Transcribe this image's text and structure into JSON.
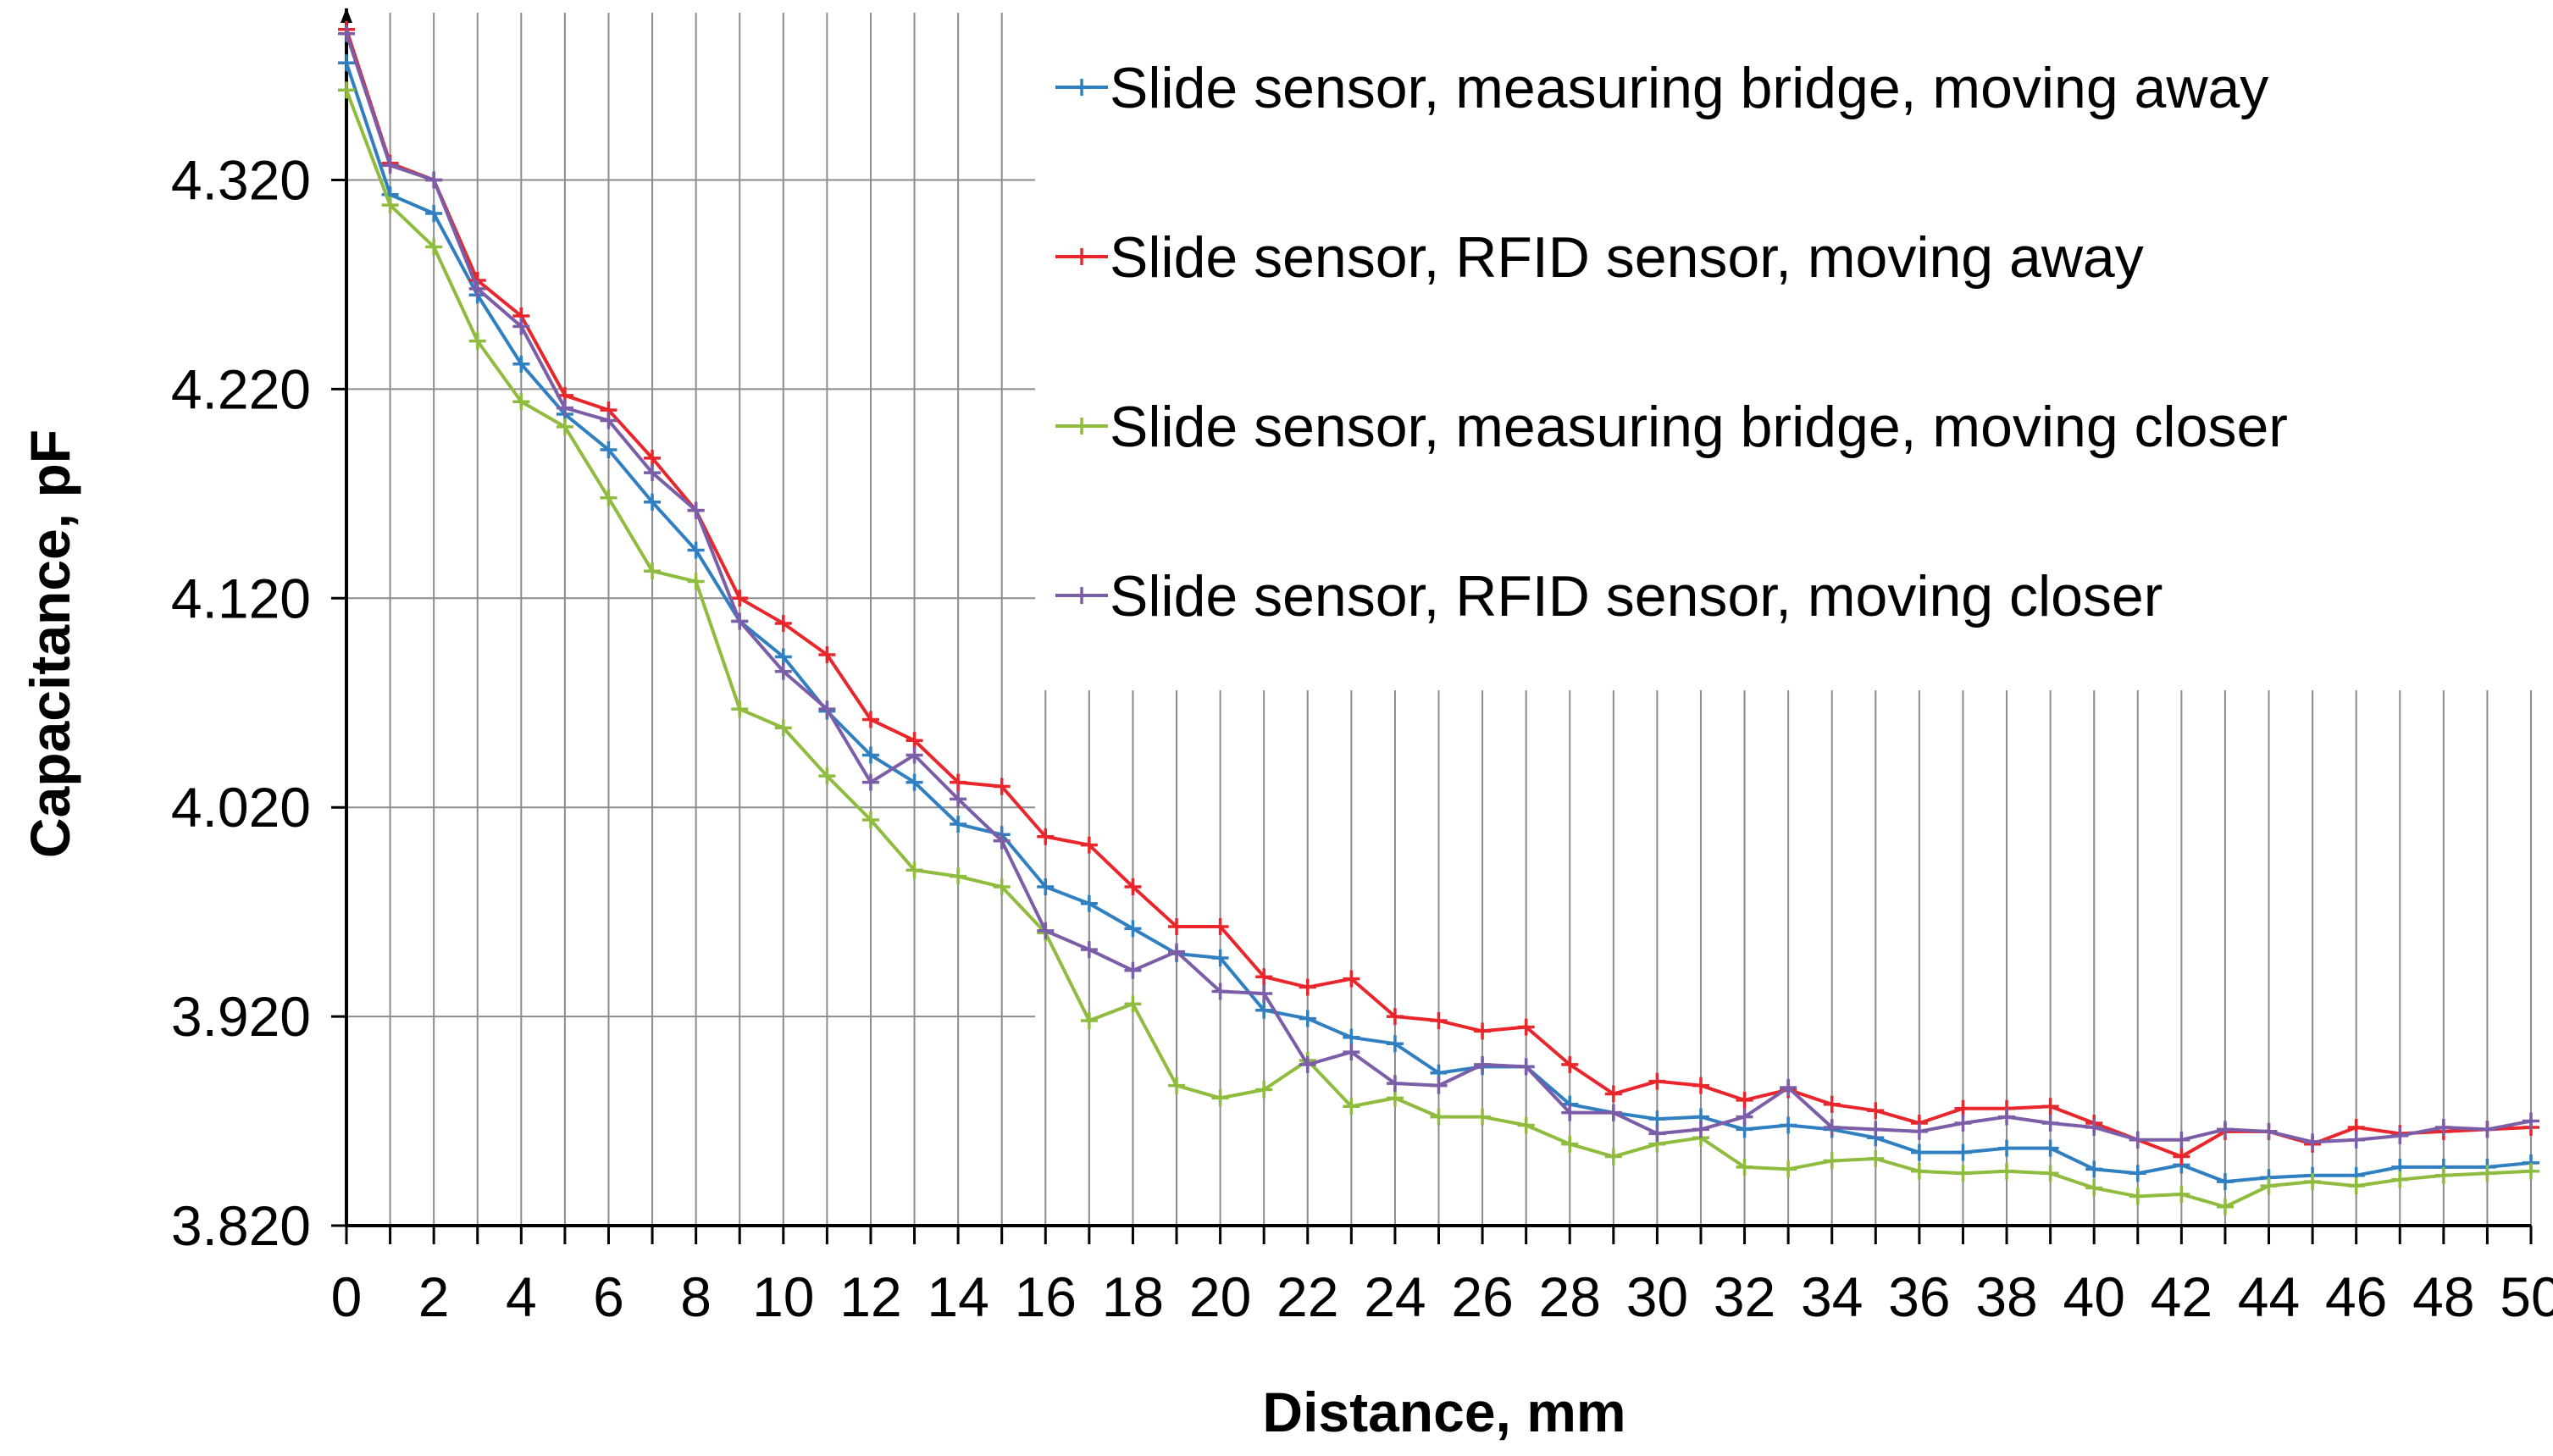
{
  "chart_data": {
    "type": "line",
    "title": "",
    "xlabel": "Distance, mm",
    "ylabel": "Capacitance, pF",
    "xlim": [
      0,
      50
    ],
    "ylim": [
      3.82,
      4.4
    ],
    "x_ticks": [
      0,
      2,
      4,
      6,
      8,
      10,
      12,
      14,
      16,
      18,
      20,
      22,
      24,
      26,
      28,
      30,
      32,
      34,
      36,
      38,
      40,
      42,
      44,
      46,
      48,
      50
    ],
    "y_ticks": [
      "3.820",
      "3.920",
      "4.020",
      "4.120",
      "4.220",
      "4.320"
    ],
    "y_tick_values": [
      3.82,
      3.92,
      4.02,
      4.12,
      4.22,
      4.32
    ],
    "grid": true,
    "legend_position": "top-right",
    "x": [
      0,
      1,
      2,
      3,
      4,
      5,
      6,
      7,
      8,
      9,
      10,
      11,
      12,
      13,
      14,
      15,
      16,
      17,
      18,
      19,
      20,
      21,
      22,
      23,
      24,
      25,
      26,
      27,
      28,
      29,
      30,
      31,
      32,
      33,
      34,
      35,
      36,
      37,
      38,
      39,
      40,
      41,
      42,
      43,
      44,
      45,
      46,
      47,
      48,
      49,
      50
    ],
    "series": [
      {
        "name": "Slide sensor, measuring bridge, moving away",
        "color": "#2f7fc1",
        "values": [
          4.376,
          4.313,
          4.304,
          4.265,
          4.232,
          4.208,
          4.191,
          4.166,
          4.143,
          4.109,
          4.092,
          4.066,
          4.045,
          4.032,
          4.012,
          4.007,
          3.982,
          3.974,
          3.962,
          3.95,
          3.948,
          3.923,
          3.919,
          3.91,
          3.907,
          3.893,
          3.896,
          3.896,
          3.878,
          3.874,
          3.871,
          3.872,
          3.866,
          3.868,
          3.866,
          3.862,
          3.855,
          3.855,
          3.857,
          3.857,
          3.847,
          3.845,
          3.849,
          3.841,
          3.843,
          3.844,
          3.844,
          3.848,
          3.848,
          3.848,
          3.85
        ]
      },
      {
        "name": "Slide sensor, RFID sensor, moving away",
        "color": "#e8262c",
        "values": [
          4.392,
          4.328,
          4.32,
          4.272,
          4.255,
          4.217,
          4.21,
          4.187,
          4.162,
          4.12,
          4.108,
          4.093,
          4.062,
          4.052,
          4.032,
          4.03,
          4.006,
          4.002,
          3.982,
          3.963,
          3.963,
          3.939,
          3.934,
          3.938,
          3.92,
          3.918,
          3.913,
          3.915,
          3.897,
          3.883,
          3.889,
          3.887,
          3.88,
          3.885,
          3.878,
          3.875,
          3.869,
          3.876,
          3.876,
          3.877,
          3.869,
          3.861,
          3.853,
          3.865,
          3.865,
          3.859,
          3.867,
          3.864,
          3.865,
          3.866,
          3.867
        ]
      },
      {
        "name": "Slide sensor, measuring bridge, moving closer",
        "color": "#8fbc3f",
        "values": [
          4.363,
          4.308,
          4.288,
          4.243,
          4.214,
          4.202,
          4.168,
          4.133,
          4.128,
          4.067,
          4.058,
          4.035,
          4.014,
          3.99,
          3.987,
          3.982,
          3.96,
          3.918,
          3.926,
          3.887,
          3.881,
          3.885,
          3.899,
          3.877,
          3.881,
          3.872,
          3.872,
          3.868,
          3.859,
          3.853,
          3.859,
          3.862,
          3.848,
          3.847,
          3.851,
          3.852,
          3.846,
          3.845,
          3.846,
          3.845,
          3.838,
          3.834,
          3.835,
          3.829,
          3.839,
          3.841,
          3.839,
          3.842,
          3.844,
          3.845,
          3.846
        ]
      },
      {
        "name": "Slide sensor, RFID sensor, moving closer",
        "color": "#7b5ea7",
        "values": [
          4.39,
          4.327,
          4.32,
          4.268,
          4.25,
          4.211,
          4.205,
          4.18,
          4.162,
          4.109,
          4.085,
          4.067,
          4.032,
          4.045,
          4.024,
          4.004,
          3.961,
          3.952,
          3.942,
          3.951,
          3.932,
          3.931,
          3.897,
          3.903,
          3.888,
          3.887,
          3.897,
          3.896,
          3.874,
          3.874,
          3.864,
          3.866,
          3.872,
          3.886,
          3.867,
          3.866,
          3.865,
          3.869,
          3.872,
          3.869,
          3.867,
          3.861,
          3.861,
          3.866,
          3.865,
          3.86,
          3.861,
          3.863,
          3.867,
          3.866,
          3.87
        ]
      }
    ]
  }
}
